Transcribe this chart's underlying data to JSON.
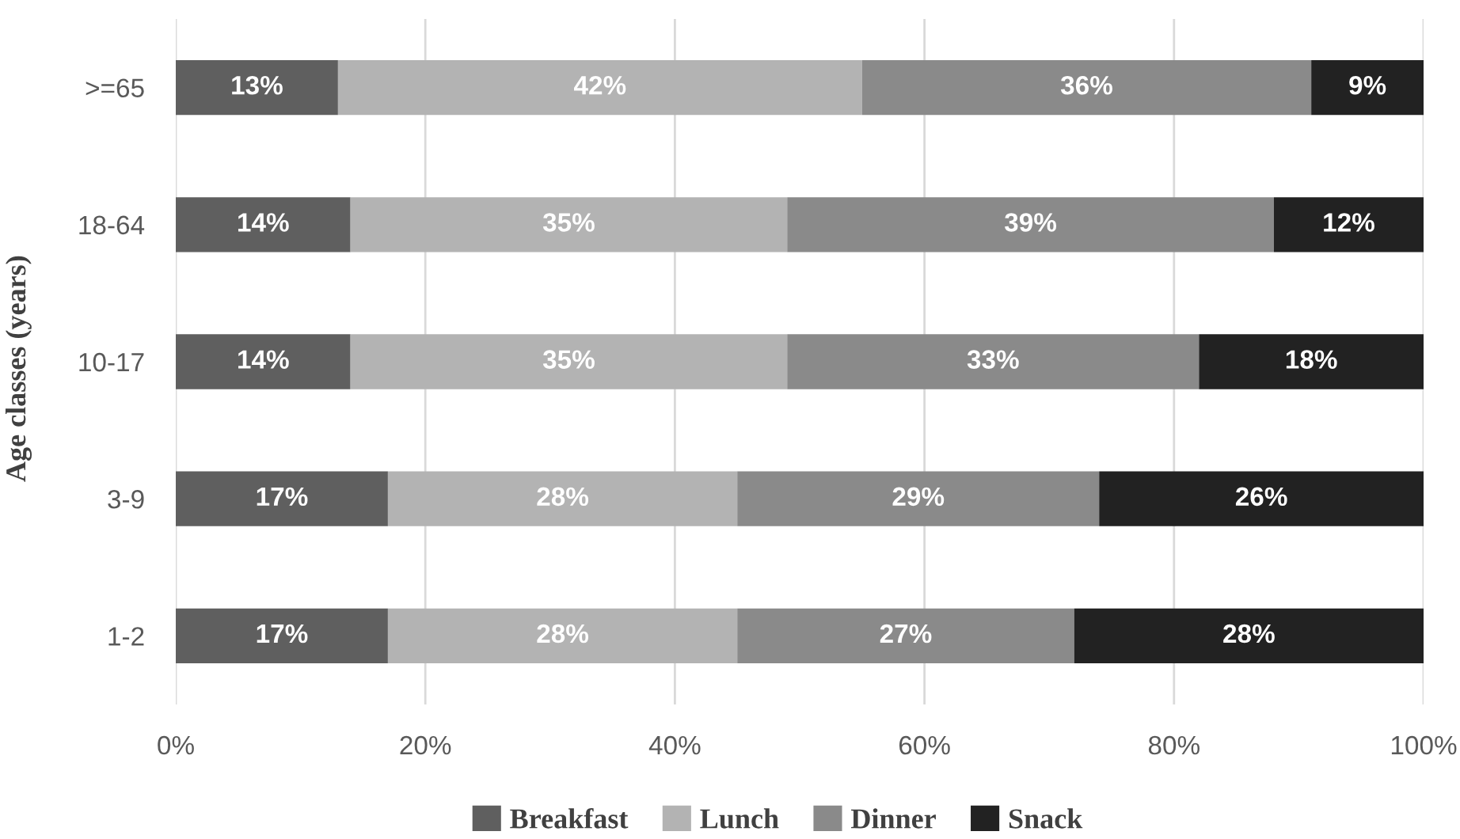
{
  "chart_data": {
    "type": "bar",
    "orientation": "horizontal",
    "stacked": true,
    "ylabel": "Age classes (years)",
    "categories": [
      ">=65",
      "18-64",
      "10-17",
      "3-9",
      "1-2"
    ],
    "series": [
      {
        "name": "Breakfast",
        "color": "#5f5f5f",
        "values": [
          13,
          14,
          14,
          17,
          17
        ],
        "value_labels": [
          "13%",
          "14%",
          "14%",
          "17%",
          "17%"
        ]
      },
      {
        "name": "Lunch",
        "color": "#b3b3b3",
        "values": [
          42,
          35,
          35,
          28,
          28
        ],
        "value_labels": [
          "42%",
          "35%",
          "35%",
          "28%",
          "28%"
        ]
      },
      {
        "name": "Dinner",
        "color": "#8a8a8a",
        "values": [
          36,
          39,
          33,
          29,
          27
        ],
        "value_labels": [
          "36%",
          "39%",
          "33%",
          "29%",
          "27%"
        ]
      },
      {
        "name": "Snack",
        "color": "#222222",
        "values": [
          9,
          12,
          18,
          26,
          28
        ],
        "value_labels": [
          "9%",
          "12%",
          "18%",
          "26%",
          "28%"
        ]
      }
    ],
    "xlim": [
      0,
      100
    ],
    "xticks": [
      {
        "value": 0,
        "label": "0%"
      },
      {
        "value": 20,
        "label": "20%"
      },
      {
        "value": 40,
        "label": "40%"
      },
      {
        "value": 60,
        "label": "60%"
      },
      {
        "value": 80,
        "label": "80%"
      },
      {
        "value": 100,
        "label": "100%"
      }
    ],
    "grid": "x",
    "legend": "bottom"
  }
}
